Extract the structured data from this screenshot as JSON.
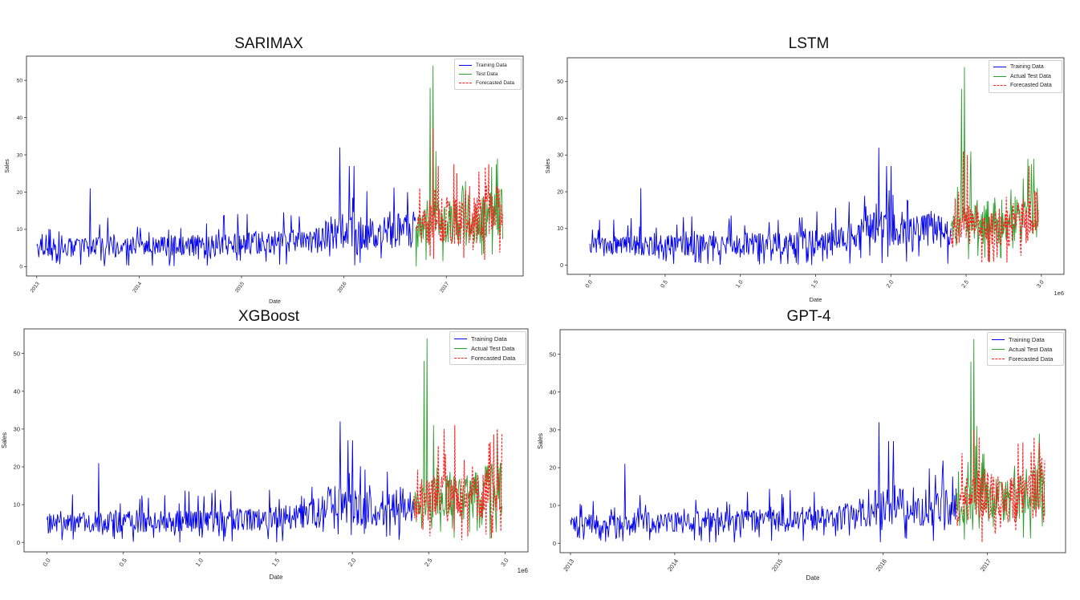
{
  "colors": {
    "training": "#0000ee",
    "test": "#2ca02c",
    "forecast": "#ff2020"
  },
  "chart_data": [
    {
      "type": "line",
      "title": "SARIMAX",
      "xlabel": "Date",
      "ylabel": "Sales",
      "x_axis": "date",
      "x_range": [
        2012.9,
        2017.75
      ],
      "ylim": [
        -2.5,
        56.5
      ],
      "x_ticks": [
        2013,
        2014,
        2015,
        2016,
        2017
      ],
      "x_tick_labels": [
        "2013",
        "2014",
        "2015",
        "2016",
        "2017"
      ],
      "y_ticks": [
        0,
        10,
        20,
        30,
        40,
        50
      ],
      "x_offset_label": "",
      "legend_position": "top-right",
      "series": [
        {
          "name": "Training Data",
          "color": "#0000ee",
          "x_range": [
            2013.0,
            2016.7
          ],
          "anchors": [
            [
              2013.0,
              5
            ],
            [
              2014.0,
              5.5
            ],
            [
              2015.0,
              6
            ],
            [
              2015.7,
              7
            ],
            [
              2016.0,
              10
            ],
            [
              2016.3,
              9
            ],
            [
              2016.7,
              10
            ]
          ],
          "peaks": [
            [
              2013.52,
              21
            ],
            [
              2015.96,
              32
            ],
            [
              2016.05,
              27
            ],
            [
              2016.1,
              27
            ]
          ]
        },
        {
          "name": "Test Data",
          "color": "#2ca02c",
          "x_range": [
            2016.7,
            2017.55
          ],
          "anchors": [
            [
              2016.7,
              9
            ],
            [
              2016.9,
              12
            ],
            [
              2017.2,
              11
            ],
            [
              2017.55,
              15
            ]
          ],
          "peaks": [
            [
              2016.84,
              48
            ],
            [
              2016.87,
              54
            ],
            [
              2016.9,
              31
            ],
            [
              2017.5,
              29
            ]
          ]
        },
        {
          "name": "Forecasted Data",
          "color": "#ff2020",
          "dashed": true,
          "x_range": [
            2016.7,
            2017.55
          ],
          "anchors": [
            [
              2016.7,
              9
            ],
            [
              2016.9,
              14
            ],
            [
              2017.2,
              11
            ],
            [
              2017.55,
              15
            ]
          ],
          "peaks": [
            [
              2016.87,
              37
            ],
            [
              2016.92,
              27
            ]
          ]
        }
      ]
    },
    {
      "type": "line",
      "title": "LSTM",
      "xlabel": "Date",
      "ylabel": "Sales",
      "x_axis": "numeric",
      "x_range": [
        -0.15,
        3.15
      ],
      "ylim": [
        -2.5,
        56.5
      ],
      "x_ticks": [
        0.0,
        0.5,
        1.0,
        1.5,
        2.0,
        2.5,
        3.0
      ],
      "x_tick_labels": [
        "0.0",
        "0.5",
        "1.0",
        "1.5",
        "2.0",
        "2.5",
        "3.0"
      ],
      "y_ticks": [
        0,
        10,
        20,
        30,
        40,
        50
      ],
      "x_offset_label": "1e6",
      "legend_position": "top-right",
      "series": [
        {
          "name": "Training Data",
          "color": "#0000ee",
          "x_range": [
            0.0,
            2.4
          ],
          "anchors": [
            [
              0.0,
              5
            ],
            [
              0.7,
              5.5
            ],
            [
              1.3,
              6
            ],
            [
              1.7,
              7
            ],
            [
              1.9,
              10
            ],
            [
              2.1,
              9
            ],
            [
              2.4,
              10
            ]
          ],
          "peaks": [
            [
              0.34,
              21
            ],
            [
              1.92,
              32
            ],
            [
              1.97,
              27
            ],
            [
              2.0,
              27
            ]
          ]
        },
        {
          "name": "Actual Test Data",
          "color": "#2ca02c",
          "x_range": [
            2.4,
            2.98
          ],
          "anchors": [
            [
              2.4,
              9
            ],
            [
              2.55,
              12
            ],
            [
              2.75,
              11
            ],
            [
              2.98,
              15
            ]
          ],
          "peaks": [
            [
              2.47,
              48
            ],
            [
              2.49,
              54
            ],
            [
              2.53,
              31
            ],
            [
              2.95,
              29
            ]
          ]
        },
        {
          "name": "Forecasted Data",
          "color": "#ff2020",
          "dashed": true,
          "x_range": [
            2.4,
            2.98
          ],
          "anchors": [
            [
              2.4,
              8
            ],
            [
              2.55,
              12
            ],
            [
              2.75,
              9
            ],
            [
              2.98,
              14
            ]
          ],
          "peaks": [
            [
              2.48,
              31
            ],
            [
              2.51,
              30
            ]
          ]
        }
      ]
    },
    {
      "type": "line",
      "title": "XGBoost",
      "xlabel": "Date",
      "ylabel": "Sales",
      "x_axis": "numeric",
      "x_range": [
        -0.15,
        3.15
      ],
      "ylim": [
        -2.5,
        56.5
      ],
      "x_ticks": [
        0.0,
        0.5,
        1.0,
        1.5,
        2.0,
        2.5,
        3.0
      ],
      "x_tick_labels": [
        "0.0",
        "0.5",
        "1.0",
        "1.5",
        "2.0",
        "2.5",
        "3.0"
      ],
      "y_ticks": [
        0,
        10,
        20,
        30,
        40,
        50
      ],
      "x_offset_label": "1e6",
      "legend_position": "top-right",
      "series": [
        {
          "name": "Training Data",
          "color": "#0000ee",
          "x_range": [
            0.0,
            2.4
          ],
          "anchors": [
            [
              0.0,
              5
            ],
            [
              0.7,
              5.5
            ],
            [
              1.3,
              6
            ],
            [
              1.7,
              7
            ],
            [
              1.9,
              10
            ],
            [
              2.1,
              9
            ],
            [
              2.4,
              10
            ]
          ],
          "peaks": [
            [
              0.34,
              21
            ],
            [
              1.92,
              32
            ],
            [
              1.97,
              27
            ],
            [
              2.0,
              27
            ]
          ]
        },
        {
          "name": "Actual Test Data",
          "color": "#2ca02c",
          "x_range": [
            2.4,
            2.98
          ],
          "anchors": [
            [
              2.4,
              9
            ],
            [
              2.55,
              12
            ],
            [
              2.75,
              11
            ],
            [
              2.98,
              15
            ]
          ],
          "peaks": [
            [
              2.47,
              48
            ],
            [
              2.49,
              54
            ],
            [
              2.53,
              31
            ],
            [
              2.95,
              29
            ]
          ]
        },
        {
          "name": "Forecasted Data",
          "color": "#ff2020",
          "dashed": true,
          "x_range": [
            2.4,
            2.98
          ],
          "anchors": [
            [
              2.4,
              9
            ],
            [
              2.55,
              12
            ],
            [
              2.75,
              11
            ],
            [
              2.98,
              14
            ]
          ],
          "peaks": [
            [
              2.6,
              30
            ],
            [
              2.67,
              31
            ],
            [
              2.95,
              30
            ],
            [
              2.98,
              29
            ]
          ]
        }
      ]
    },
    {
      "type": "line",
      "title": "GPT-4",
      "xlabel": "Date",
      "ylabel": "Sales",
      "x_axis": "date",
      "x_range": [
        2012.9,
        2017.75
      ],
      "ylim": [
        -2.5,
        56.5
      ],
      "x_ticks": [
        2013,
        2014,
        2015,
        2016,
        2017
      ],
      "x_tick_labels": [
        "2013",
        "2014",
        "2015",
        "2016",
        "2017"
      ],
      "y_ticks": [
        0,
        10,
        20,
        30,
        40,
        50
      ],
      "x_offset_label": "",
      "legend_position": "top-right",
      "series": [
        {
          "name": "Training Data",
          "color": "#0000ee",
          "x_range": [
            2013.0,
            2016.7
          ],
          "anchors": [
            [
              2013.0,
              5
            ],
            [
              2014.0,
              5.5
            ],
            [
              2015.0,
              6
            ],
            [
              2015.7,
              7
            ],
            [
              2016.0,
              10
            ],
            [
              2016.3,
              9
            ],
            [
              2016.7,
              10
            ]
          ],
          "peaks": [
            [
              2013.52,
              21
            ],
            [
              2015.96,
              32
            ],
            [
              2016.05,
              27
            ],
            [
              2016.1,
              27
            ]
          ]
        },
        {
          "name": "Actual Test Data",
          "color": "#2ca02c",
          "x_range": [
            2016.7,
            2017.55
          ],
          "anchors": [
            [
              2016.7,
              9
            ],
            [
              2016.9,
              12
            ],
            [
              2017.2,
              11
            ],
            [
              2017.55,
              15
            ]
          ],
          "peaks": [
            [
              2016.84,
              48
            ],
            [
              2016.87,
              54
            ],
            [
              2016.9,
              31
            ],
            [
              2017.5,
              29
            ]
          ]
        },
        {
          "name": "Forecasted Data",
          "color": "#ff2020",
          "dashed": true,
          "x_range": [
            2016.7,
            2017.55
          ],
          "anchors": [
            [
              2016.7,
              9
            ],
            [
              2016.9,
              14
            ],
            [
              2017.2,
              11
            ],
            [
              2017.55,
              15
            ]
          ],
          "peaks": [
            [
              2016.87,
              30
            ],
            [
              2016.92,
              28
            ],
            [
              2017.45,
              28
            ]
          ]
        }
      ]
    }
  ]
}
